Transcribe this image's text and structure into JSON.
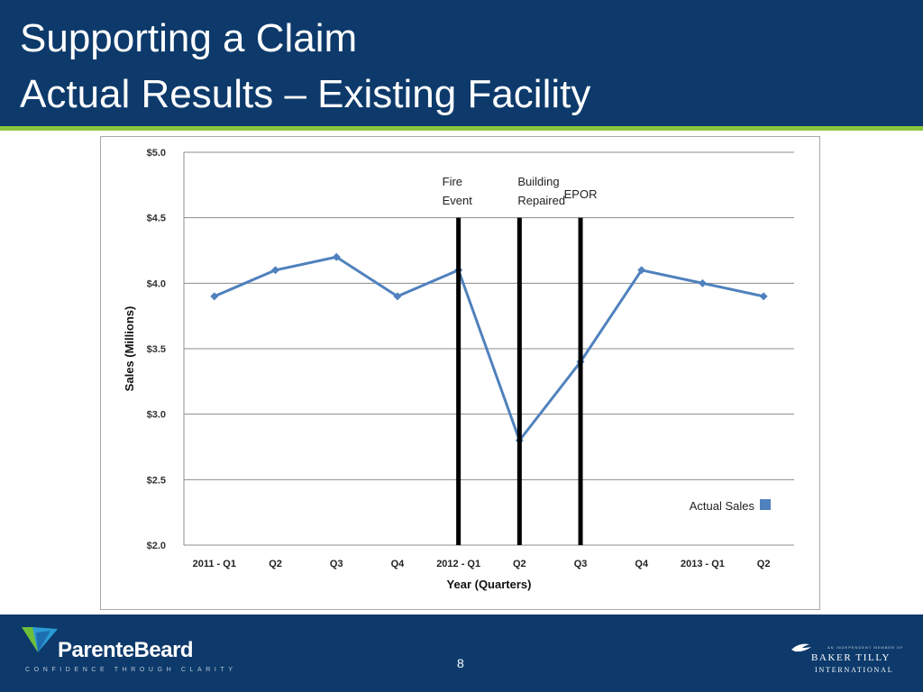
{
  "slide": {
    "title_line1": "Supporting a Claim",
    "title_line2": "Actual Results – Existing Facility",
    "page_number": "8",
    "logo_left": {
      "name": "ParenteBeard",
      "tagline": "CONFIDENCE THROUGH CLARITY"
    },
    "logo_right": {
      "small_text": "AN INDEPENDENT MEMBER OF",
      "name": "BAKER TILLY",
      "subtitle": "INTERNATIONAL"
    },
    "colors": {
      "header": "#0d3a6b",
      "accent_rule": "#8cc63f",
      "series": "#4f81bd",
      "event_lines": "#000000"
    }
  },
  "chart_data": {
    "type": "line",
    "title": "",
    "xlabel": "Year (Quarters)",
    "ylabel": "Sales (Millions)",
    "categories": [
      "2011 - Q1",
      "Q2",
      "Q3",
      "Q4",
      "2012 - Q1",
      "Q2",
      "Q3",
      "Q4",
      "2013 - Q1",
      "Q2"
    ],
    "series": [
      {
        "name": "Actual Sales",
        "values": [
          3.9,
          4.1,
          4.2,
          3.9,
          4.1,
          2.8,
          3.4,
          4.1,
          4.0,
          3.9
        ]
      }
    ],
    "ylim": [
      2.0,
      5.0
    ],
    "yticks": [
      2.0,
      2.5,
      3.0,
      3.5,
      4.0,
      4.5,
      5.0
    ],
    "ytick_labels": [
      "$2.0",
      "$2.5",
      "$3.0",
      "$3.5",
      "$4.0",
      "$4.5",
      "$5.0"
    ],
    "grid": true,
    "legend": "bottom-right",
    "event_markers": [
      {
        "category_index": 4,
        "label_lines": [
          "Fire",
          "Event"
        ],
        "top_value": 4.5
      },
      {
        "category_index": 5,
        "label_lines": [
          "Building",
          "Repaired"
        ],
        "top_value": 4.5
      },
      {
        "category_index": 6,
        "label_lines": [
          "EPOR"
        ],
        "top_value": 4.5
      }
    ]
  }
}
